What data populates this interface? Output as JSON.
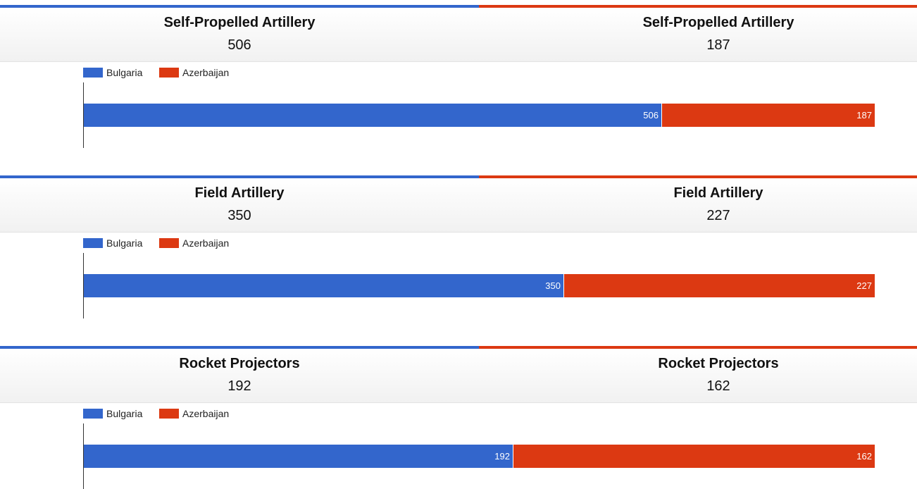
{
  "colors": {
    "bulgaria": "#3366cc",
    "azerbaijan": "#dc3912"
  },
  "legend": {
    "bulgaria": "Bulgaria",
    "azerbaijan": "Azerbaijan"
  },
  "chart_data": [
    {
      "type": "bar",
      "stacked": true,
      "orientation": "horizontal",
      "header": {
        "left_title": "Self-Propelled Artillery",
        "left_value": "506",
        "right_title": "Self-Propelled Artillery",
        "right_value": "187"
      },
      "series": [
        {
          "name": "Bulgaria",
          "values": [
            506
          ],
          "label": "506"
        },
        {
          "name": "Azerbaijan",
          "values": [
            187
          ],
          "label": "187"
        }
      ]
    },
    {
      "type": "bar",
      "stacked": true,
      "orientation": "horizontal",
      "header": {
        "left_title": "Field Artillery",
        "left_value": "350",
        "right_title": "Field Artillery",
        "right_value": "227"
      },
      "series": [
        {
          "name": "Bulgaria",
          "values": [
            350
          ],
          "label": "350"
        },
        {
          "name": "Azerbaijan",
          "values": [
            227
          ],
          "label": "227"
        }
      ]
    },
    {
      "type": "bar",
      "stacked": true,
      "orientation": "horizontal",
      "header": {
        "left_title": "Rocket Projectors",
        "left_value": "192",
        "right_title": "Rocket Projectors",
        "right_value": "162"
      },
      "series": [
        {
          "name": "Bulgaria",
          "values": [
            192
          ],
          "label": "192"
        },
        {
          "name": "Azerbaijan",
          "values": [
            162
          ],
          "label": "162"
        }
      ]
    }
  ]
}
